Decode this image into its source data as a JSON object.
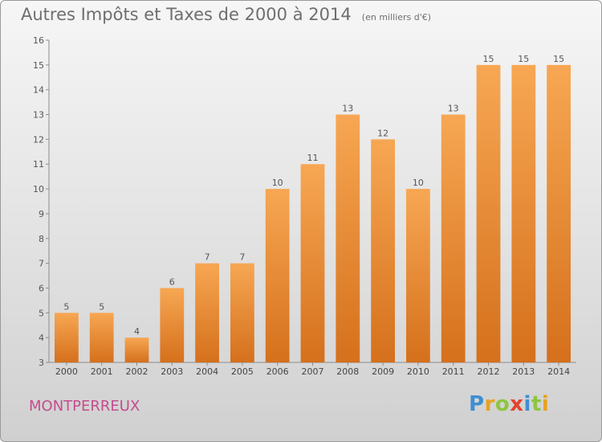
{
  "header": {
    "title": "Autres Impôts et Taxes de 2000 à 2014",
    "unit": "(en milliers d'€)"
  },
  "commune": "MONTPERREUX",
  "logo": {
    "text": "Proxiti",
    "letters": [
      "P",
      "r",
      "o",
      "x",
      "i",
      "t",
      "i"
    ]
  },
  "colors": {
    "bar_light": "#f7a753",
    "bar_dark": "#d5701c",
    "commune": "#c44d8e",
    "title": "#6e6e6e"
  },
  "chart_data": {
    "type": "bar",
    "title": "Autres Impôts et Taxes de 2000 à 2014",
    "subtitle": "(en milliers d'€)",
    "xlabel": "",
    "ylabel": "",
    "categories": [
      "2000",
      "2001",
      "2002",
      "2003",
      "2004",
      "2005",
      "2006",
      "2007",
      "2008",
      "2009",
      "2010",
      "2011",
      "2012",
      "2013",
      "2014"
    ],
    "values": [
      5,
      5,
      4,
      6,
      7,
      7,
      10,
      11,
      13,
      12,
      10,
      13,
      15,
      15,
      15
    ],
    "data_labels": [
      "5",
      "5",
      "4",
      "6",
      "7",
      "7",
      "10",
      "11",
      "13",
      "12",
      "10",
      "13",
      "15",
      "15",
      "15"
    ],
    "ylim": [
      3,
      16
    ],
    "yticks": [
      "3",
      "4",
      "5",
      "6",
      "7",
      "8",
      "9",
      "10",
      "11",
      "12",
      "13",
      "14",
      "15",
      "16"
    ],
    "grid": false,
    "legend": "none"
  }
}
